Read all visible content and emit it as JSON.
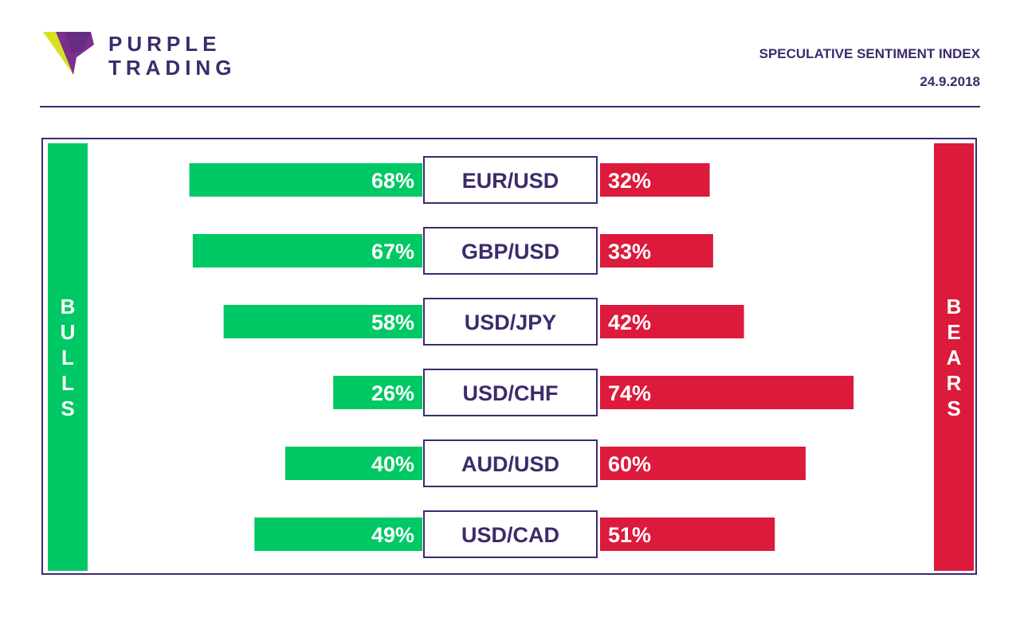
{
  "brand": {
    "line1": "PURPLE",
    "line2": "TRADING",
    "logo_icon": "purple-arrow-logo-icon"
  },
  "header": {
    "title": "SPECULATIVE SENTIMENT INDEX",
    "date": "24.9.2018"
  },
  "colors": {
    "purple": "#3d2b6b",
    "bulls": "#00c864",
    "bears": "#dc1a3c",
    "logo_purple": "#7b2f8f",
    "logo_yellow": "#d9e021"
  },
  "chart_data": {
    "type": "bar",
    "title": "SPECULATIVE SENTIMENT INDEX",
    "categories": [
      "EUR/USD",
      "GBP/USD",
      "USD/JPY",
      "USD/CHF",
      "AUD/USD",
      "USD/CAD"
    ],
    "series": [
      {
        "name": "BULLS",
        "values": [
          68,
          67,
          58,
          26,
          40,
          49
        ],
        "labels": [
          "68%",
          "67%",
          "58%",
          "26%",
          "40%",
          "49%"
        ]
      },
      {
        "name": "BEARS",
        "values": [
          32,
          33,
          42,
          74,
          60,
          51
        ],
        "labels": [
          "32%",
          "33%",
          "42%",
          "74%",
          "60%",
          "51%"
        ]
      }
    ],
    "unit": "%",
    "xlim": [
      0,
      100
    ]
  }
}
